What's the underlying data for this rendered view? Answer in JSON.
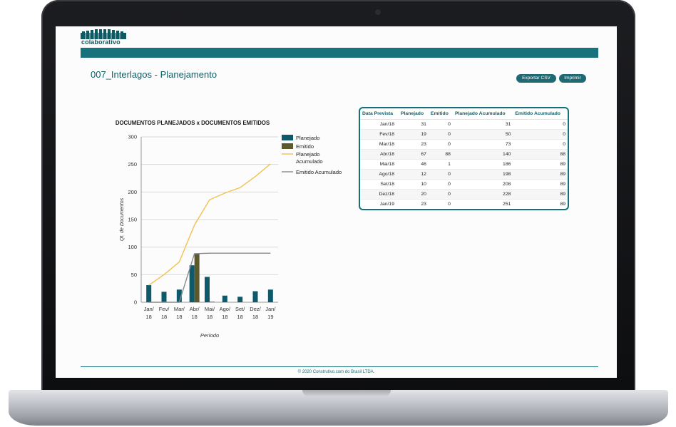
{
  "app": {
    "logo_text": "colaborativo"
  },
  "page": {
    "title": "007_Interlagos - Planejamento"
  },
  "toolbar": {
    "export_csv_label": "Exportar CSV",
    "print_label": "Imprimir"
  },
  "table": {
    "headers": [
      "Data Prevista",
      "Planejado",
      "Emitido",
      "Planejado Acumulado",
      "Emitido Acumulado"
    ],
    "rows": [
      [
        "Jan/18",
        "31",
        "0",
        "31",
        "0"
      ],
      [
        "Fev/18",
        "19",
        "0",
        "50",
        "0"
      ],
      [
        "Mar/18",
        "23",
        "0",
        "73",
        "0"
      ],
      [
        "Abr/18",
        "67",
        "88",
        "140",
        "88"
      ],
      [
        "Mai/18",
        "46",
        "1",
        "186",
        "89"
      ],
      [
        "Ago/18",
        "12",
        "0",
        "198",
        "89"
      ],
      [
        "Set/18",
        "10",
        "0",
        "208",
        "89"
      ],
      [
        "Dez/18",
        "20",
        "0",
        "228",
        "89"
      ],
      [
        "Jan/19",
        "23",
        "0",
        "251",
        "89"
      ]
    ]
  },
  "chart_data": {
    "type": "bar",
    "title": "DOCUMENTOS PLANEJADOS x DOCUMENTOS EMITIDOS",
    "xlabel": "Período",
    "ylabel": "Qt. de Documentos",
    "ylim": [
      0,
      300
    ],
    "yticks": [
      0,
      50,
      100,
      150,
      200,
      250,
      300
    ],
    "grid": true,
    "legend_position": "right",
    "categories": [
      "Jan/18",
      "Fev/18",
      "Mar/18",
      "Abr/18",
      "Mai/18",
      "Ago/18",
      "Set/18",
      "Dez/18",
      "Jan/19"
    ],
    "category_lines": [
      [
        "Jan/",
        "18"
      ],
      [
        "Fev/",
        "18"
      ],
      [
        "Mar/",
        "18"
      ],
      [
        "Abr/",
        "18"
      ],
      [
        "Mai/",
        "18"
      ],
      [
        "Ago/",
        "18"
      ],
      [
        "Set/",
        "18"
      ],
      [
        "Dez/",
        "18"
      ],
      [
        "Jan/",
        "19"
      ]
    ],
    "series": [
      {
        "name": "Planejado",
        "kind": "bar",
        "color": "#0e5a6b",
        "values": [
          31,
          19,
          23,
          67,
          46,
          12,
          10,
          20,
          23
        ]
      },
      {
        "name": "Emitido",
        "kind": "bar",
        "color": "#5c5a2c",
        "values": [
          0,
          0,
          0,
          88,
          1,
          0,
          0,
          0,
          0
        ]
      },
      {
        "name": "Planejado Acumulado",
        "kind": "line",
        "color": "#f2c14e",
        "values": [
          31,
          50,
          73,
          140,
          186,
          198,
          208,
          228,
          251
        ]
      },
      {
        "name": "Emitido Acumulado",
        "kind": "line",
        "color": "#8a8a8a",
        "values": [
          0,
          0,
          0,
          88,
          89,
          89,
          89,
          89,
          89
        ]
      }
    ],
    "legend_lines": [
      [
        "Planejado"
      ],
      [
        "Emitido"
      ],
      [
        "Planejado",
        "Acumulado"
      ],
      [
        "Emitido Acumulado"
      ]
    ]
  },
  "footer": {
    "text": "© 2020 Construtivo.com do Brasil LTDA."
  }
}
